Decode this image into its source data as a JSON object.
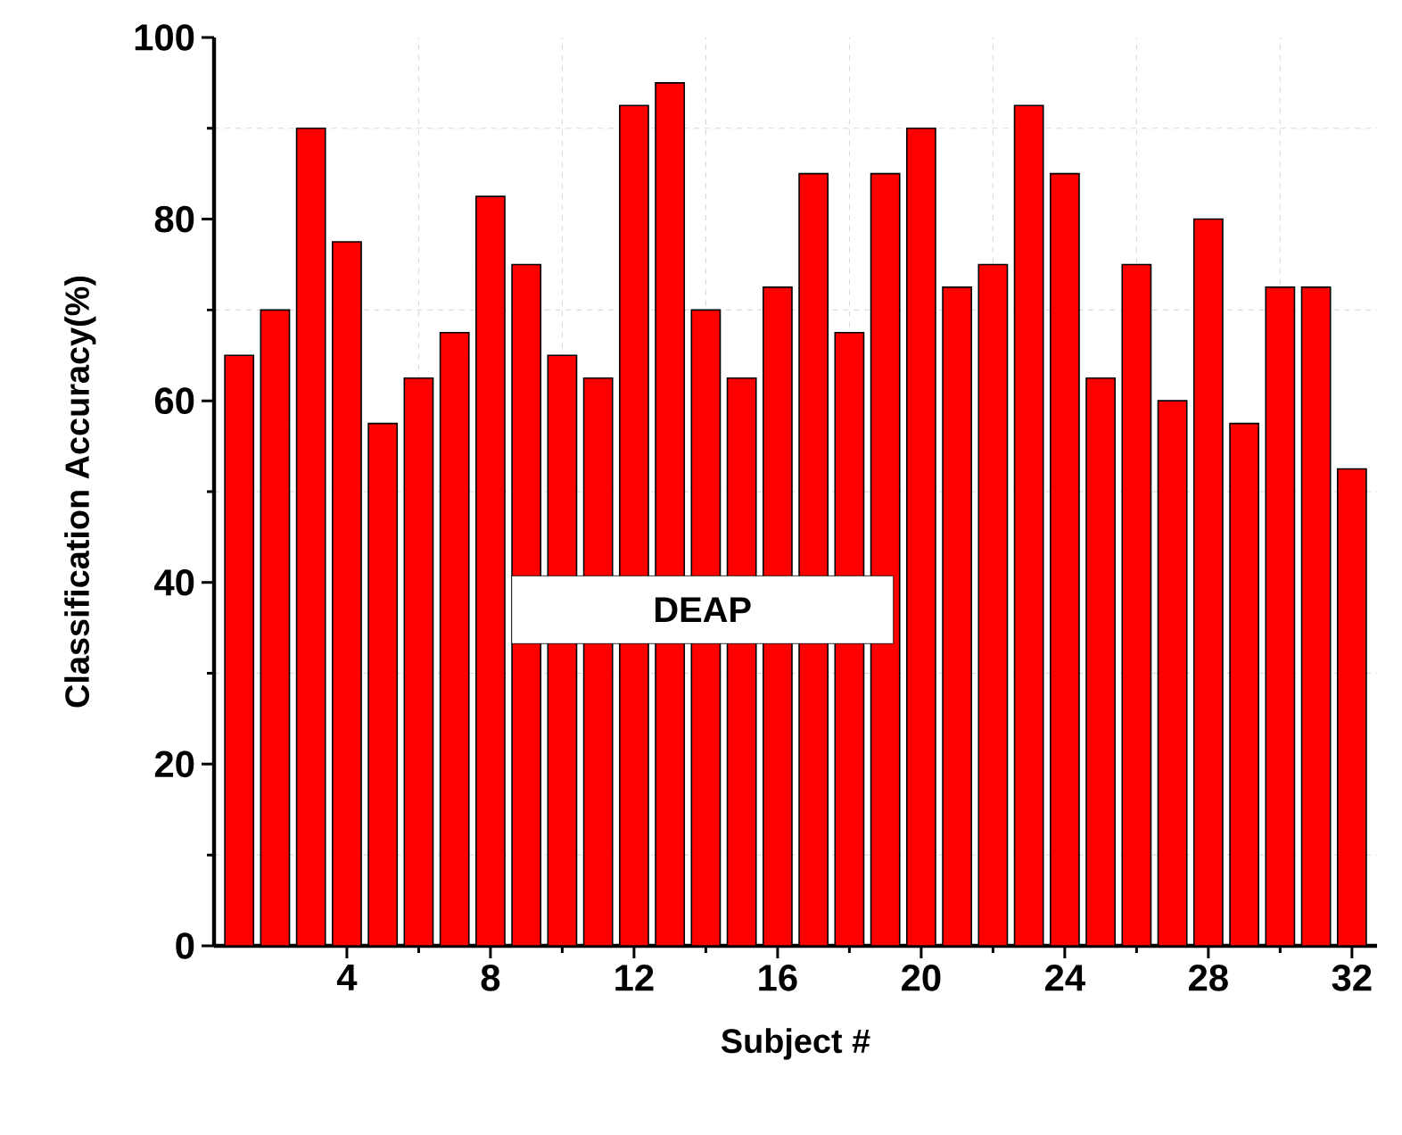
{
  "chart_data": {
    "type": "bar",
    "xlabel": "Subject #",
    "ylabel": "Classification Accuracy(%)",
    "x": [
      1,
      2,
      3,
      4,
      5,
      6,
      7,
      8,
      9,
      10,
      11,
      12,
      13,
      14,
      15,
      16,
      17,
      18,
      19,
      20,
      21,
      22,
      23,
      24,
      25,
      26,
      27,
      28,
      29,
      30,
      31,
      32
    ],
    "values": [
      65,
      70,
      90,
      77.5,
      57.5,
      62.5,
      67.5,
      82.5,
      75,
      65,
      62.5,
      92.5,
      95,
      70,
      62.5,
      72.5,
      85,
      67.5,
      85,
      90,
      72.5,
      75,
      92.5,
      85,
      62.5,
      75,
      60,
      80,
      57.5,
      72.5,
      72.5,
      52.5
    ],
    "color": "#ff0000",
    "xlim": [
      0.3,
      32.7
    ],
    "xticks": [
      4,
      8,
      12,
      16,
      20,
      24,
      28,
      32
    ],
    "ylim": [
      0,
      100
    ],
    "yticks": [
      0,
      20,
      40,
      60,
      80,
      100
    ],
    "grid": true,
    "annotations": [
      "DEAP"
    ]
  }
}
